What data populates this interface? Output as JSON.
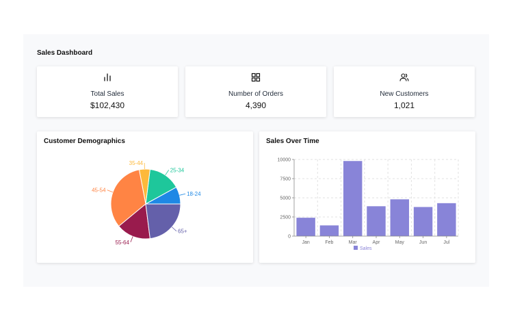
{
  "dashboard": {
    "title": "Sales Dashboard"
  },
  "stats": [
    {
      "label": "Total Sales",
      "value": "$102,430",
      "icon": "bar-chart-icon"
    },
    {
      "label": "Number of Orders",
      "value": "4,390",
      "icon": "grid-icon"
    },
    {
      "label": "New Customers",
      "value": "1,021",
      "icon": "users-icon"
    }
  ],
  "demographics": {
    "title": "Customer Demographics"
  },
  "sales_over_time": {
    "title": "Sales Over Time"
  },
  "chart_data": [
    {
      "type": "pie",
      "title": "Customer Demographics",
      "categories": [
        "18-24",
        "25-34",
        "35-44",
        "45-54",
        "55-64",
        "65+"
      ],
      "values": [
        8,
        15,
        5,
        33,
        16,
        23
      ],
      "colors": [
        "#1e88e5",
        "#1ec79b",
        "#fdb93b",
        "#ff8444",
        "#991b4d",
        "#6460aa"
      ]
    },
    {
      "type": "bar",
      "title": "Sales Over Time",
      "categories": [
        "Jan",
        "Feb",
        "Mar",
        "Apr",
        "May",
        "Jun",
        "Jul"
      ],
      "series": [
        {
          "name": "Sales",
          "values": [
            2400,
            1400,
            9800,
            3900,
            4800,
            3800,
            4300
          ]
        }
      ],
      "yticks": [
        0,
        2500,
        5000,
        7500,
        10000
      ],
      "ylim": [
        0,
        10000
      ],
      "grid": true,
      "legend": "bottom",
      "color": "#8884d8"
    }
  ]
}
